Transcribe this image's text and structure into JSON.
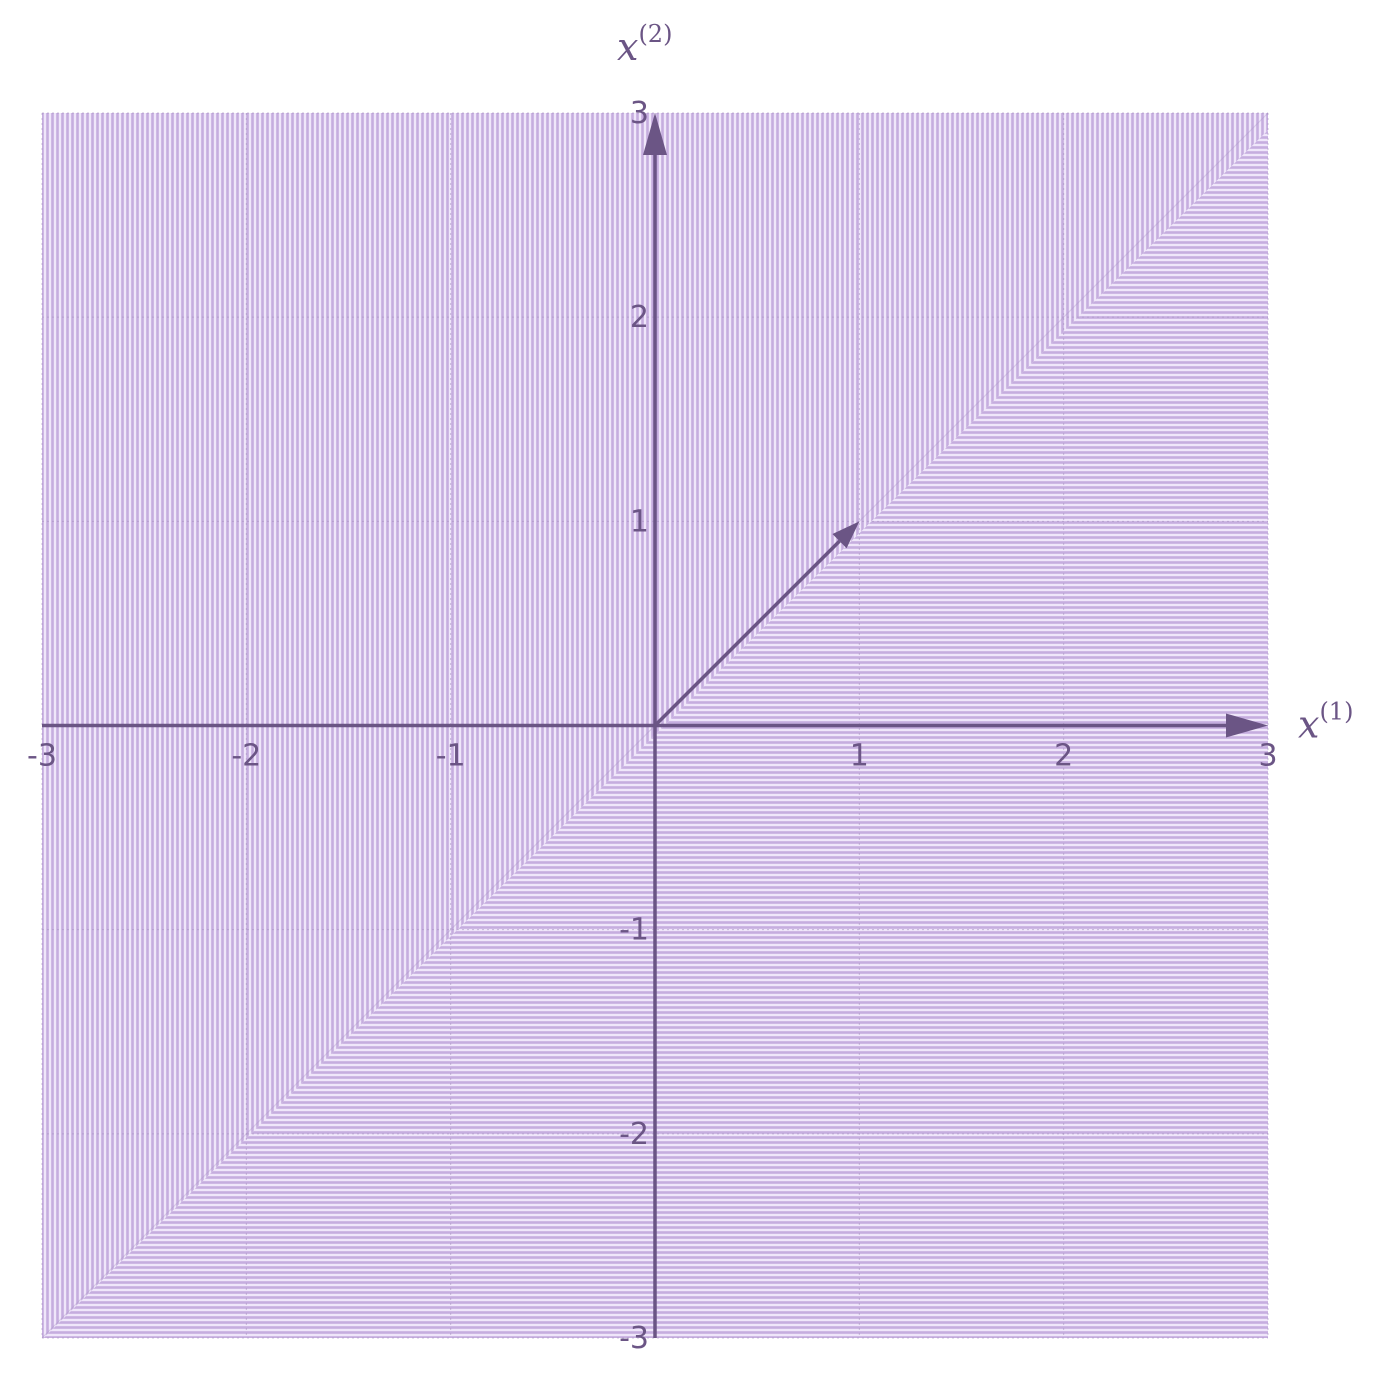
{
  "chart_data": {
    "type": "vector-field",
    "title": "",
    "xlabel": "x",
    "xlabel_superscript": "(1)",
    "ylabel": "x",
    "ylabel_superscript": "(2)",
    "xlim": [
      -3,
      3
    ],
    "ylim": [
      -3,
      3
    ],
    "x_ticks": [
      -3,
      -2,
      -1,
      1,
      2,
      3
    ],
    "y_ticks": [
      -3,
      -2,
      -1,
      1,
      2,
      3
    ],
    "x_tick_labels": [
      "-3",
      "-2",
      "-1",
      "1",
      "2",
      "3"
    ],
    "y_tick_labels": [
      "-3",
      "-2",
      "-1",
      "1",
      "2",
      "3"
    ],
    "grid": true,
    "field_region": {
      "x": [
        -3,
        3
      ],
      "y": [
        -3,
        3
      ]
    },
    "highlighted_vector": {
      "from": [
        0,
        0
      ],
      "to": [
        1,
        1
      ]
    },
    "colors": {
      "axis": "#6b5585",
      "field": "#c5addf",
      "field_dark": "#a992c4",
      "grid": "#a58fbf",
      "vector": "#6b5585"
    }
  }
}
